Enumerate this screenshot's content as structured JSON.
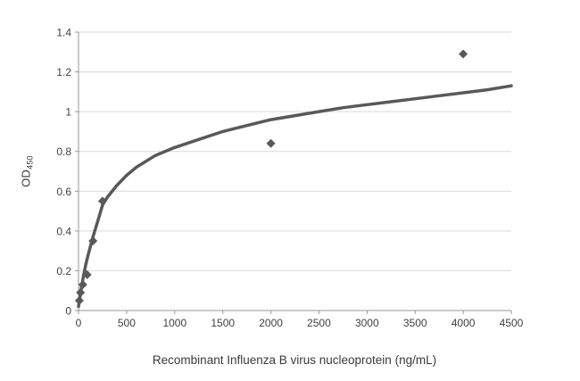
{
  "chart_data": {
    "type": "scatter",
    "title": "",
    "xlabel": "Recombinant Influenza B virus nucleoprotein (ng/mL)",
    "ylabel_main": "OD",
    "ylabel_sub": "450",
    "xlim": [
      0,
      4500
    ],
    "ylim": [
      0,
      1.4
    ],
    "xticks": [
      0,
      500,
      1000,
      1500,
      2000,
      2500,
      3000,
      3500,
      4000,
      4500
    ],
    "xticklabels": [
      "0",
      "500",
      "1000",
      "1500",
      "2000",
      "2500",
      "3000",
      "3500",
      "4000",
      "4500"
    ],
    "yticks": [
      0,
      0.2,
      0.4,
      0.6,
      0.8,
      1,
      1.2,
      1.4
    ],
    "yticklabels": [
      "0",
      "0.2",
      "0.4",
      "0.6",
      "0.8",
      "1",
      "1.2",
      "1.4"
    ],
    "grid": "horizontal-only",
    "legend": "none",
    "points": [
      {
        "x": 8,
        "y": 0.05
      },
      {
        "x": 20,
        "y": 0.09
      },
      {
        "x": 45,
        "y": 0.13
      },
      {
        "x": 90,
        "y": 0.18
      },
      {
        "x": 150,
        "y": 0.35
      },
      {
        "x": 250,
        "y": 0.55
      },
      {
        "x": 2000,
        "y": 0.84
      },
      {
        "x": 4000,
        "y": 1.29
      }
    ],
    "fit_curve": {
      "x": [
        0,
        25,
        50,
        75,
        100,
        150,
        200,
        250,
        300,
        400,
        500,
        600,
        700,
        800,
        900,
        1000,
        1250,
        1500,
        1750,
        2000,
        2250,
        2500,
        2750,
        3000,
        3250,
        3500,
        3750,
        4000,
        4250,
        4500
      ],
      "y": [
        0.02,
        0.1,
        0.17,
        0.23,
        0.28,
        0.37,
        0.45,
        0.53,
        0.57,
        0.63,
        0.68,
        0.72,
        0.75,
        0.78,
        0.8,
        0.82,
        0.86,
        0.9,
        0.93,
        0.96,
        0.98,
        1.0,
        1.02,
        1.035,
        1.05,
        1.065,
        1.08,
        1.095,
        1.11,
        1.13
      ]
    },
    "colors": {
      "marker": "#595959",
      "curve": "#595959",
      "gridline": "#d9d9d9",
      "axis": "#969696",
      "text": "#404040"
    }
  }
}
